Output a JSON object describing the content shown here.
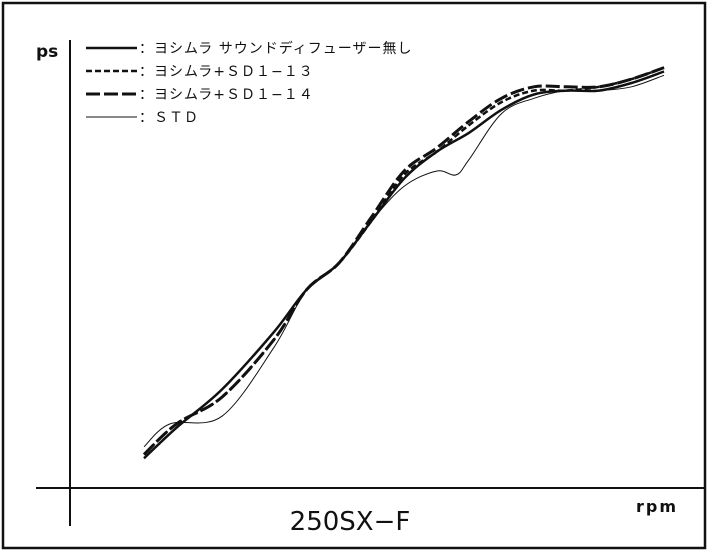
{
  "chart_data": {
    "type": "line",
    "title": "250SX−F",
    "xlabel": "rpm",
    "ylabel": "ps",
    "xlim": [
      0,
      100
    ],
    "ylim": [
      0,
      100
    ],
    "grid": false,
    "legend_position": "top-left",
    "series": [
      {
        "name": "：ヨシムラ サウンドディフューザー無し",
        "style": "solid-thick",
        "points": [
          [
            0,
            2
          ],
          [
            5,
            10
          ],
          [
            12,
            20
          ],
          [
            20,
            35
          ],
          [
            25,
            46
          ],
          [
            30,
            53
          ],
          [
            35,
            64
          ],
          [
            40,
            75
          ],
          [
            45,
            82
          ],
          [
            50,
            87
          ],
          [
            55,
            93
          ],
          [
            60,
            97
          ],
          [
            65,
            98
          ],
          [
            70,
            98
          ],
          [
            75,
            100
          ],
          [
            80,
            103
          ]
        ]
      },
      {
        "name": "：ヨシムラ+ＳＤ１−１３",
        "style": "dashed",
        "points": [
          [
            0,
            3
          ],
          [
            5,
            11
          ],
          [
            12,
            18
          ],
          [
            20,
            33
          ],
          [
            25,
            46
          ],
          [
            30,
            53
          ],
          [
            35,
            64
          ],
          [
            40,
            76
          ],
          [
            45,
            82
          ],
          [
            50,
            89
          ],
          [
            55,
            95
          ],
          [
            60,
            98
          ],
          [
            65,
            98
          ],
          [
            70,
            99
          ],
          [
            75,
            101
          ],
          [
            80,
            104
          ]
        ]
      },
      {
        "name": "：ヨシムラ+ＳＤ１−１４",
        "style": "long-dash",
        "points": [
          [
            0,
            3
          ],
          [
            5,
            11
          ],
          [
            12,
            18
          ],
          [
            20,
            33
          ],
          [
            25,
            46
          ],
          [
            30,
            53
          ],
          [
            35,
            65
          ],
          [
            40,
            77
          ],
          [
            45,
            83
          ],
          [
            50,
            90
          ],
          [
            55,
            96
          ],
          [
            60,
            99
          ],
          [
            65,
            99
          ],
          [
            70,
            99
          ],
          [
            75,
            101
          ],
          [
            80,
            104
          ]
        ]
      },
      {
        "name": "：ＳＴＤ",
        "style": "thin",
        "points": [
          [
            0,
            5
          ],
          [
            4,
            11
          ],
          [
            12,
            13
          ],
          [
            20,
            31
          ],
          [
            25,
            46
          ],
          [
            30,
            53
          ],
          [
            35,
            64
          ],
          [
            40,
            73
          ],
          [
            45,
            77
          ],
          [
            48,
            76
          ],
          [
            50,
            80
          ],
          [
            55,
            92
          ],
          [
            60,
            96
          ],
          [
            65,
            98
          ],
          [
            70,
            98
          ],
          [
            75,
            99
          ],
          [
            80,
            102
          ]
        ]
      }
    ]
  }
}
